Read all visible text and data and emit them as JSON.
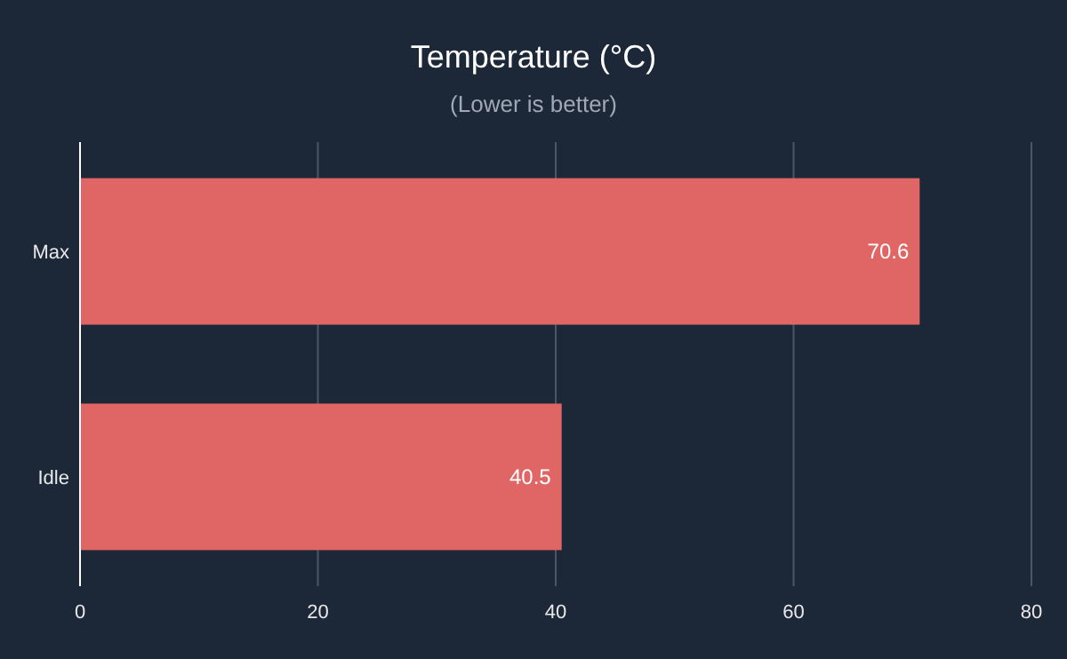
{
  "chart_data": {
    "type": "bar",
    "orientation": "horizontal",
    "title": "Temperature (°C)",
    "subtitle": "(Lower is better)",
    "categories": [
      "Max",
      "Idle"
    ],
    "series": [
      {
        "color": "#e06666",
        "values": [
          70.6,
          40.5
        ]
      }
    ],
    "xlim": [
      0,
      80
    ],
    "xticks": [
      0,
      20,
      40,
      60,
      80
    ],
    "grid": "x",
    "data_labels": true
  }
}
